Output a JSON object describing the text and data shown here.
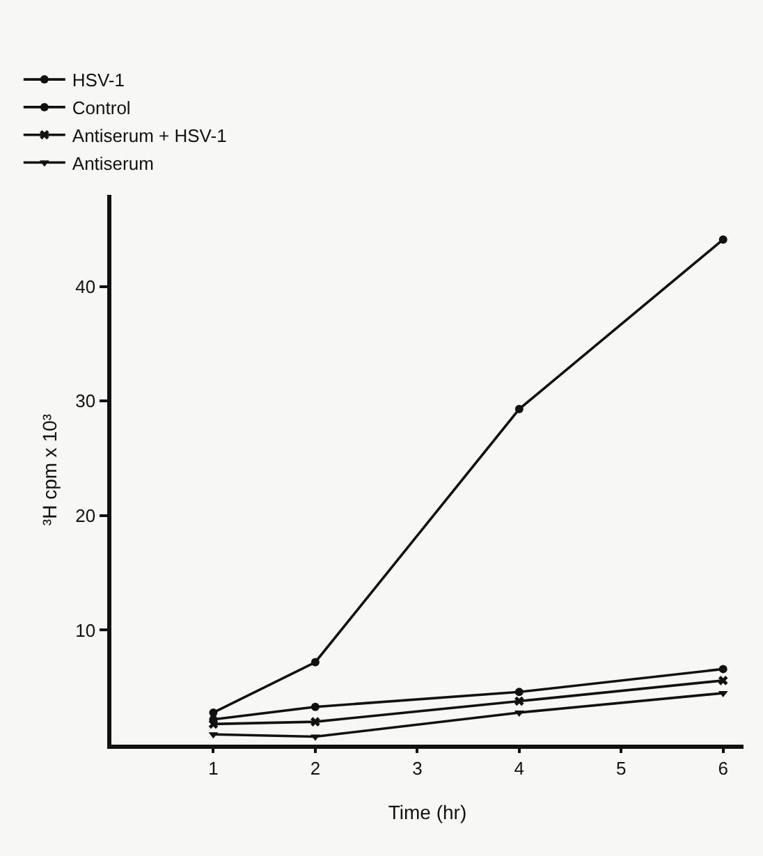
{
  "chart_data": {
    "type": "line",
    "xlabel": "Time (hr)",
    "ylabel": "³H cpm x 10³",
    "x": [
      1,
      2,
      4,
      6
    ],
    "xlim": [
      0,
      6.2
    ],
    "xticks": [
      1,
      2,
      3,
      4,
      5,
      6
    ],
    "ylim": [
      0,
      48
    ],
    "yticks": [
      10,
      20,
      30,
      40
    ],
    "grid": false,
    "legend": "top left",
    "line_style": "solid",
    "series": [
      {
        "name": "HSV-1",
        "color": "#111111",
        "marker": "circle",
        "values": [
          2.8,
          7.2,
          29.3,
          44.1
        ]
      },
      {
        "name": "Control",
        "color": "#111111",
        "marker": "circle",
        "values": [
          2.2,
          3.3,
          4.6,
          6.6
        ]
      },
      {
        "name": "Antiserum + HSV-1",
        "color": "#111111",
        "marker": "cross",
        "values": [
          1.8,
          2.0,
          3.8,
          5.6
        ]
      },
      {
        "name": "Antiserum",
        "color": "#111111",
        "marker": "triangle",
        "values": [
          0.9,
          0.7,
          2.8,
          4.5
        ]
      }
    ]
  }
}
